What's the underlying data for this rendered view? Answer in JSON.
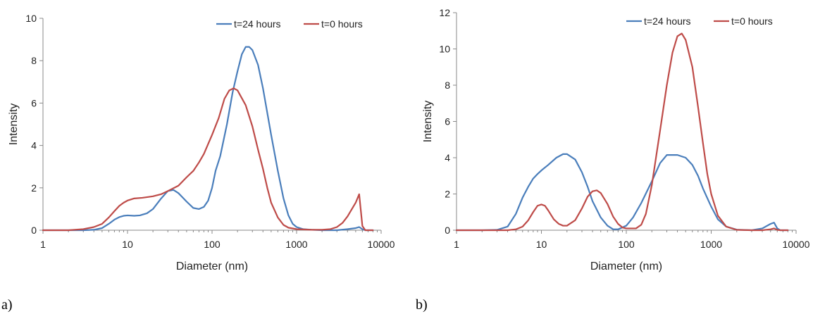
{
  "colors": {
    "t24": "#4a7ebb",
    "t0": "#be4b48",
    "axis": "#888888"
  },
  "chart_data": [
    {
      "type": "line",
      "panel_label": "a)",
      "xlabel": "Diameter (nm)",
      "ylabel": "Intensity",
      "xscale": "log",
      "xlim": [
        1,
        10000
      ],
      "ylim": [
        0,
        10
      ],
      "xticks": [
        1,
        10,
        100,
        1000,
        10000
      ],
      "xtick_labels": [
        "1",
        "10",
        "100",
        "1000",
        "10000"
      ],
      "yticks": [
        0,
        2,
        4,
        6,
        8,
        10
      ],
      "ytick_labels": [
        "0",
        "2",
        "4",
        "6",
        "8",
        "10"
      ],
      "grid": false,
      "legend": "top-right",
      "series": [
        {
          "name": "t=24 hours",
          "color": "#4a7ebb",
          "points": [
            [
              1,
              0
            ],
            [
              2,
              0
            ],
            [
              3,
              0
            ],
            [
              4,
              0.02
            ],
            [
              5,
              0.1
            ],
            [
              6,
              0.3
            ],
            [
              7,
              0.5
            ],
            [
              8,
              0.62
            ],
            [
              9,
              0.68
            ],
            [
              10,
              0.7
            ],
            [
              12,
              0.68
            ],
            [
              14,
              0.7
            ],
            [
              17,
              0.8
            ],
            [
              20,
              1.0
            ],
            [
              25,
              1.5
            ],
            [
              30,
              1.85
            ],
            [
              35,
              1.9
            ],
            [
              40,
              1.75
            ],
            [
              50,
              1.35
            ],
            [
              60,
              1.05
            ],
            [
              70,
              1.0
            ],
            [
              80,
              1.1
            ],
            [
              90,
              1.4
            ],
            [
              100,
              2.0
            ],
            [
              110,
              2.8
            ],
            [
              125,
              3.5
            ],
            [
              150,
              5.0
            ],
            [
              175,
              6.5
            ],
            [
              200,
              7.5
            ],
            [
              225,
              8.3
            ],
            [
              250,
              8.65
            ],
            [
              275,
              8.65
            ],
            [
              300,
              8.5
            ],
            [
              350,
              7.8
            ],
            [
              400,
              6.7
            ],
            [
              500,
              4.5
            ],
            [
              600,
              2.8
            ],
            [
              700,
              1.5
            ],
            [
              800,
              0.7
            ],
            [
              900,
              0.3
            ],
            [
              1000,
              0.15
            ],
            [
              1200,
              0.05
            ],
            [
              1500,
              0.02
            ],
            [
              2000,
              0
            ],
            [
              3000,
              0
            ],
            [
              4000,
              0.05
            ],
            [
              5000,
              0.1
            ],
            [
              5500,
              0.15
            ],
            [
              6000,
              0.05
            ],
            [
              6500,
              0
            ],
            [
              7000,
              0
            ],
            [
              8000,
              0
            ]
          ]
        },
        {
          "name": "t=0 hours",
          "color": "#be4b48",
          "points": [
            [
              1,
              0
            ],
            [
              2,
              0
            ],
            [
              3,
              0.05
            ],
            [
              4,
              0.15
            ],
            [
              5,
              0.3
            ],
            [
              6,
              0.6
            ],
            [
              7,
              0.9
            ],
            [
              8,
              1.15
            ],
            [
              9,
              1.3
            ],
            [
              10,
              1.4
            ],
            [
              12,
              1.5
            ],
            [
              15,
              1.53
            ],
            [
              20,
              1.6
            ],
            [
              25,
              1.7
            ],
            [
              30,
              1.85
            ],
            [
              40,
              2.1
            ],
            [
              50,
              2.5
            ],
            [
              60,
              2.8
            ],
            [
              70,
              3.2
            ],
            [
              80,
              3.6
            ],
            [
              100,
              4.5
            ],
            [
              120,
              5.3
            ],
            [
              140,
              6.2
            ],
            [
              160,
              6.6
            ],
            [
              180,
              6.7
            ],
            [
              200,
              6.6
            ],
            [
              250,
              5.9
            ],
            [
              300,
              4.9
            ],
            [
              350,
              3.8
            ],
            [
              400,
              2.9
            ],
            [
              450,
              2.0
            ],
            [
              500,
              1.3
            ],
            [
              600,
              0.6
            ],
            [
              700,
              0.25
            ],
            [
              800,
              0.12
            ],
            [
              1000,
              0.05
            ],
            [
              1500,
              0.02
            ],
            [
              2000,
              0.02
            ],
            [
              2500,
              0.05
            ],
            [
              3000,
              0.15
            ],
            [
              3500,
              0.35
            ],
            [
              4000,
              0.65
            ],
            [
              5000,
              1.3
            ],
            [
              5500,
              1.7
            ],
            [
              6000,
              0.2
            ],
            [
              6500,
              0
            ],
            [
              7000,
              0
            ],
            [
              8000,
              0
            ]
          ]
        }
      ]
    },
    {
      "type": "line",
      "panel_label": "b)",
      "xlabel": "Diameter (nm)",
      "ylabel": "Intensity",
      "xscale": "log",
      "xlim": [
        1,
        10000
      ],
      "ylim": [
        0,
        12
      ],
      "xticks": [
        1,
        10,
        100,
        1000,
        10000
      ],
      "xtick_labels": [
        "1",
        "10",
        "100",
        "1000",
        "10000"
      ],
      "yticks": [
        0,
        2,
        4,
        6,
        8,
        10,
        12
      ],
      "ytick_labels": [
        "0",
        "2",
        "4",
        "6",
        "8",
        "10",
        "12"
      ],
      "grid": false,
      "legend": "top-right",
      "series": [
        {
          "name": "t=24 hours",
          "color": "#4a7ebb",
          "points": [
            [
              1,
              0
            ],
            [
              2,
              0
            ],
            [
              3,
              0.02
            ],
            [
              4,
              0.2
            ],
            [
              5,
              0.9
            ],
            [
              6,
              1.8
            ],
            [
              7,
              2.4
            ],
            [
              8,
              2.85
            ],
            [
              9,
              3.1
            ],
            [
              10,
              3.3
            ],
            [
              12,
              3.6
            ],
            [
              15,
              4.0
            ],
            [
              18,
              4.2
            ],
            [
              20,
              4.2
            ],
            [
              25,
              3.9
            ],
            [
              30,
              3.2
            ],
            [
              35,
              2.4
            ],
            [
              40,
              1.6
            ],
            [
              50,
              0.7
            ],
            [
              60,
              0.25
            ],
            [
              70,
              0.05
            ],
            [
              80,
              0.05
            ],
            [
              100,
              0.25
            ],
            [
              120,
              0.7
            ],
            [
              150,
              1.5
            ],
            [
              200,
              2.7
            ],
            [
              250,
              3.7
            ],
            [
              300,
              4.15
            ],
            [
              400,
              4.15
            ],
            [
              500,
              4.0
            ],
            [
              600,
              3.6
            ],
            [
              700,
              3.0
            ],
            [
              800,
              2.3
            ],
            [
              1000,
              1.3
            ],
            [
              1200,
              0.6
            ],
            [
              1500,
              0.2
            ],
            [
              2000,
              0.03
            ],
            [
              3000,
              0
            ],
            [
              4000,
              0.1
            ],
            [
              5000,
              0.35
            ],
            [
              5500,
              0.42
            ],
            [
              6000,
              0.1
            ],
            [
              6500,
              0
            ],
            [
              8000,
              0
            ]
          ]
        },
        {
          "name": "t=0 hours",
          "color": "#be4b48",
          "points": [
            [
              1,
              0
            ],
            [
              2,
              0
            ],
            [
              4,
              0
            ],
            [
              5,
              0.05
            ],
            [
              6,
              0.2
            ],
            [
              7,
              0.55
            ],
            [
              8,
              1.0
            ],
            [
              9,
              1.35
            ],
            [
              10,
              1.42
            ],
            [
              11,
              1.35
            ],
            [
              12,
              1.1
            ],
            [
              14,
              0.6
            ],
            [
              16,
              0.35
            ],
            [
              18,
              0.25
            ],
            [
              20,
              0.25
            ],
            [
              25,
              0.55
            ],
            [
              30,
              1.2
            ],
            [
              35,
              1.85
            ],
            [
              40,
              2.15
            ],
            [
              45,
              2.2
            ],
            [
              50,
              2.05
            ],
            [
              60,
              1.45
            ],
            [
              70,
              0.75
            ],
            [
              80,
              0.35
            ],
            [
              90,
              0.15
            ],
            [
              100,
              0.1
            ],
            [
              130,
              0.1
            ],
            [
              150,
              0.3
            ],
            [
              170,
              0.9
            ],
            [
              200,
              2.5
            ],
            [
              250,
              5.5
            ],
            [
              300,
              8.0
            ],
            [
              350,
              9.8
            ],
            [
              400,
              10.7
            ],
            [
              450,
              10.85
            ],
            [
              500,
              10.5
            ],
            [
              600,
              9.0
            ],
            [
              700,
              6.8
            ],
            [
              800,
              4.8
            ],
            [
              900,
              3.1
            ],
            [
              1000,
              2.0
            ],
            [
              1200,
              0.8
            ],
            [
              1500,
              0.2
            ],
            [
              2000,
              0.02
            ],
            [
              3000,
              0
            ],
            [
              4000,
              0
            ],
            [
              5000,
              0.05
            ],
            [
              5500,
              0.1
            ],
            [
              6000,
              0.02
            ],
            [
              6500,
              0
            ],
            [
              8000,
              0
            ]
          ]
        }
      ]
    }
  ]
}
